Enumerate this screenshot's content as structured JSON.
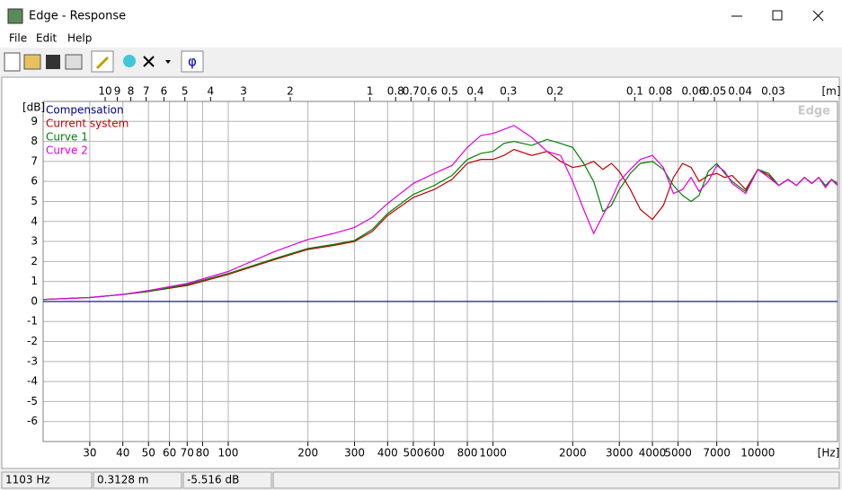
{
  "window": {
    "title": "Edge - Response"
  },
  "menu": [
    "File",
    "Edit",
    "Help"
  ],
  "toolbar": {
    "phase_button": "φ"
  },
  "status_bar": [
    "1103 Hz",
    "0.3128 m",
    "-5.516 dB"
  ],
  "chart_data": {
    "type": "line",
    "watermark": "Edge",
    "x_label": "[Hz]",
    "y_label": "[dB]",
    "x2_label": "[m]",
    "x_log": true,
    "grid": true,
    "xlim": [
      20,
      20000
    ],
    "xticks": [
      30,
      40,
      50,
      60,
      70,
      80,
      100,
      200,
      300,
      400,
      500,
      600,
      800,
      1000,
      2000,
      3000,
      4000,
      5000,
      7000,
      10000
    ],
    "x2lim": [
      17.15,
      0.01715
    ],
    "x2ticks": [
      10,
      9,
      8,
      7,
      6,
      5,
      4,
      3,
      2,
      1,
      0.8,
      0.7,
      0.6,
      0.5,
      0.4,
      0.3,
      0.2,
      0.1,
      0.08,
      0.06,
      0.05,
      0.04,
      0.03
    ],
    "ylim": [
      -7,
      10
    ],
    "yticks": [
      -6,
      -5,
      -4,
      -3,
      -2,
      -1,
      0,
      1,
      2,
      3,
      4,
      5,
      6,
      7,
      8,
      9
    ],
    "x": [
      20,
      30,
      40,
      50,
      70,
      100,
      150,
      200,
      250,
      300,
      350,
      400,
      500,
      600,
      700,
      800,
      900,
      1000,
      1100,
      1200,
      1400,
      1600,
      1800,
      2000,
      2200,
      2400,
      2600,
      2800,
      3000,
      3300,
      3600,
      4000,
      4400,
      4800,
      5200,
      5600,
      6000,
      6500,
      7000,
      7500,
      8000,
      9000,
      10000,
      11000,
      12000,
      13000,
      14000,
      15000,
      16000,
      17000,
      18000,
      19000,
      20000
    ],
    "series": [
      {
        "name": "Compensation",
        "color": "#000080",
        "values": [
          0,
          0,
          0,
          0,
          0,
          0,
          0,
          0,
          0,
          0,
          0,
          0,
          0,
          0,
          0,
          0,
          0,
          0,
          0,
          0,
          0,
          0,
          0,
          0,
          0,
          0,
          0,
          0,
          0,
          0,
          0,
          0,
          0,
          0,
          0,
          0,
          0,
          0,
          0,
          0,
          0,
          0,
          0,
          0,
          0,
          0,
          0,
          0,
          0,
          0,
          0,
          0,
          0
        ]
      },
      {
        "name": "Current system",
        "color": "#c00000",
        "values": [
          0.1,
          0.2,
          0.35,
          0.5,
          0.8,
          1.35,
          2.1,
          2.6,
          2.8,
          3.0,
          3.5,
          4.3,
          5.2,
          5.6,
          6.1,
          6.9,
          7.1,
          7.1,
          7.3,
          7.6,
          7.3,
          7.5,
          7.0,
          6.7,
          6.8,
          7.0,
          6.6,
          6.9,
          6.5,
          5.6,
          4.6,
          4.1,
          4.8,
          6.2,
          6.9,
          6.7,
          6.0,
          6.3,
          6.4,
          6.2,
          6.3,
          5.6,
          6.6,
          6.3,
          5.8,
          6.1,
          5.8,
          6.2,
          5.9,
          6.2,
          5.7,
          6.1,
          5.8
        ]
      },
      {
        "name": "Curve 1",
        "color": "#008000",
        "values": [
          0.1,
          0.2,
          0.35,
          0.5,
          0.85,
          1.4,
          2.15,
          2.65,
          2.85,
          3.05,
          3.6,
          4.4,
          5.35,
          5.8,
          6.3,
          7.1,
          7.4,
          7.5,
          7.9,
          8.0,
          7.8,
          8.1,
          7.9,
          7.7,
          6.9,
          6.0,
          4.5,
          4.8,
          5.6,
          6.4,
          6.9,
          7.0,
          6.6,
          5.8,
          5.3,
          5.0,
          5.3,
          6.5,
          6.9,
          6.4,
          6.0,
          5.5,
          6.6,
          6.4,
          5.8,
          6.1,
          5.8,
          6.2,
          5.9,
          6.2,
          5.8,
          6.1,
          5.9
        ]
      },
      {
        "name": "Curve 2",
        "color": "#e000e0",
        "values": [
          0.1,
          0.2,
          0.35,
          0.55,
          0.9,
          1.5,
          2.5,
          3.1,
          3.4,
          3.7,
          4.2,
          4.9,
          5.9,
          6.4,
          6.8,
          7.7,
          8.3,
          8.4,
          8.6,
          8.8,
          8.2,
          7.5,
          7.3,
          6.0,
          4.6,
          3.4,
          4.3,
          5.1,
          6.0,
          6.6,
          7.1,
          7.3,
          6.7,
          5.4,
          5.6,
          6.2,
          5.5,
          6.0,
          6.8,
          6.5,
          5.9,
          5.4,
          6.6,
          6.2,
          5.8,
          6.1,
          5.8,
          6.2,
          5.9,
          6.2,
          5.7,
          6.1,
          5.8
        ]
      }
    ]
  }
}
